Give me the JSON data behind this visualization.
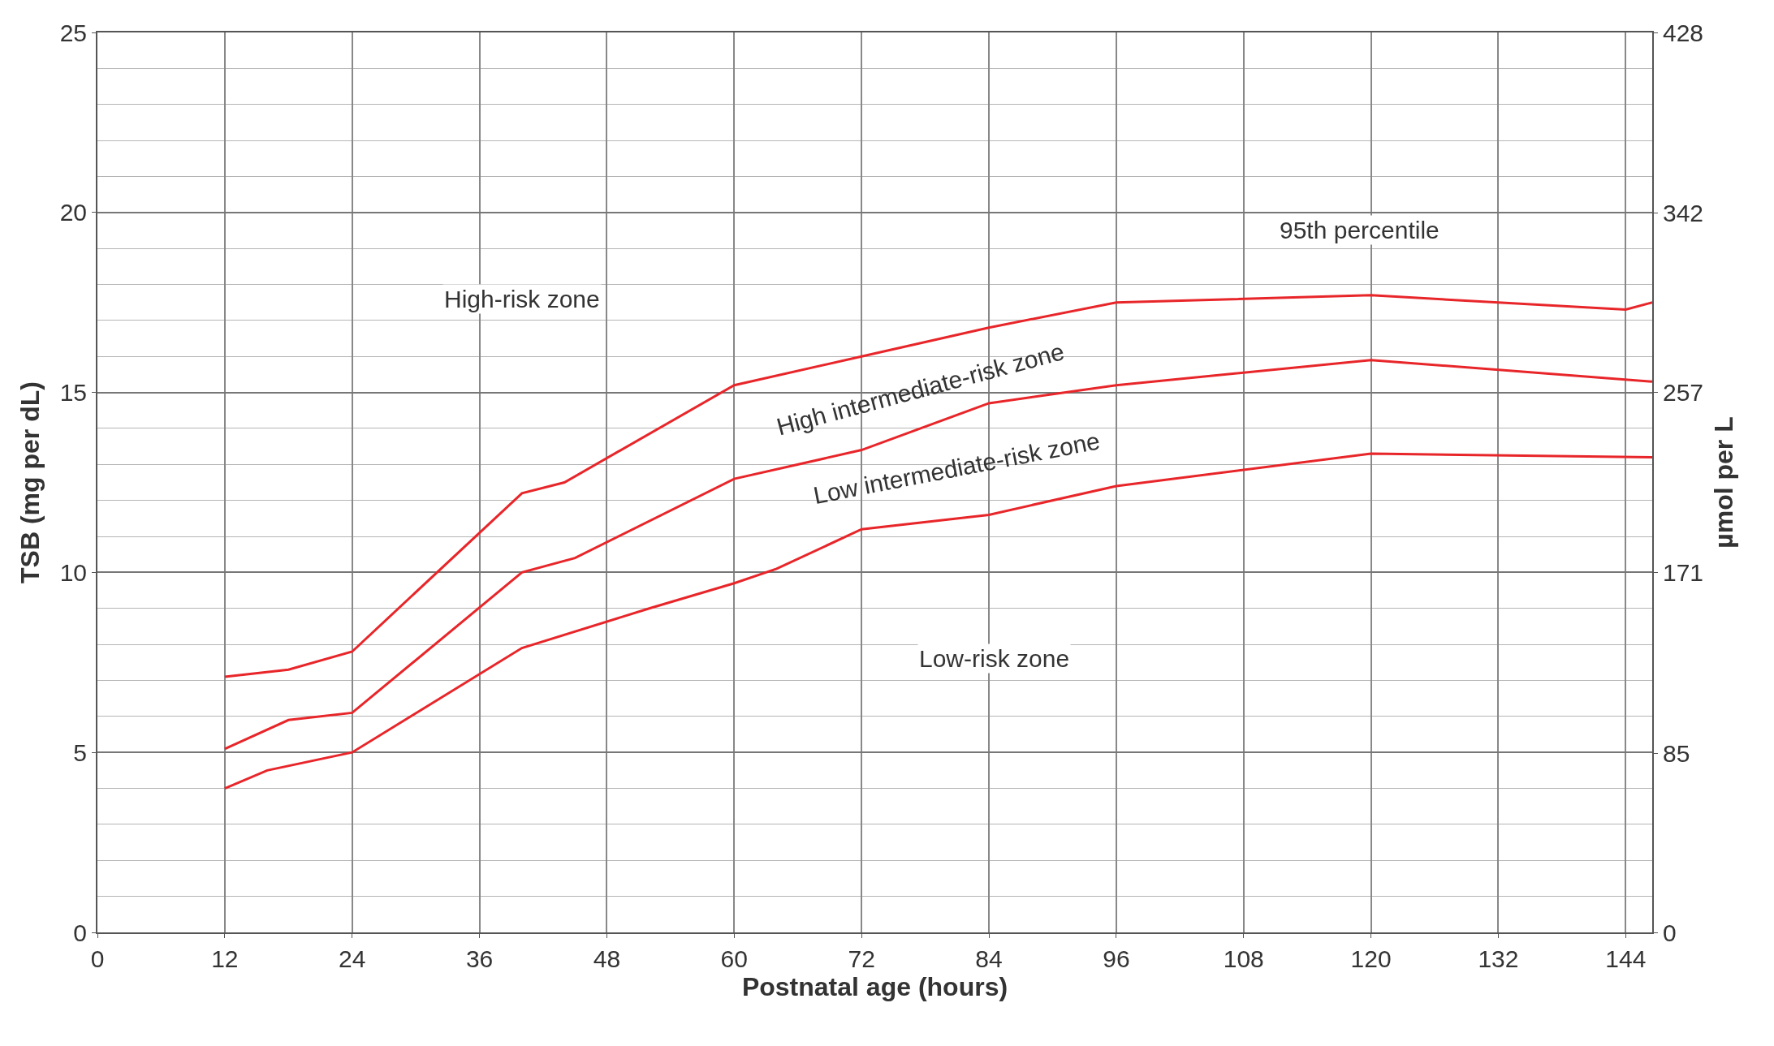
{
  "chart_data": {
    "type": "line",
    "xlabel": "Postnatal age (hours)",
    "ylabel": "TSB (mg per dL)",
    "y2label": "µmol per L",
    "xlim": [
      0,
      146.5
    ],
    "xticks": [
      0,
      12,
      24,
      36,
      48,
      60,
      72,
      84,
      96,
      108,
      120,
      132,
      144
    ],
    "ylim": [
      0,
      25
    ],
    "yticks": [
      0,
      5,
      10,
      15,
      20,
      25
    ],
    "y2lim": [
      0,
      428
    ],
    "y2ticks": [
      0,
      85,
      171,
      257,
      342,
      428
    ],
    "grid": true,
    "marker": "none",
    "line_style": "solid",
    "series": [
      {
        "color": "#e8262a",
        "x": [
          12,
          18,
          24,
          40,
          44,
          60,
          72,
          84,
          96,
          120,
          144,
          146.5
        ],
        "values": [
          7.1,
          7.3,
          7.8,
          12.2,
          12.5,
          15.2,
          16.0,
          16.8,
          17.5,
          17.7,
          17.3,
          17.5
        ]
      },
      {
        "color": "#e8262a",
        "x": [
          12,
          18,
          24,
          40,
          45,
          60,
          72,
          84,
          96,
          120,
          146.5
        ],
        "values": [
          5.1,
          5.9,
          6.1,
          10.0,
          10.4,
          12.6,
          13.4,
          14.7,
          15.2,
          15.9,
          15.3
        ]
      },
      {
        "color": "#e8262a",
        "x": [
          12,
          16,
          24,
          40,
          52,
          60,
          64,
          72,
          84,
          96,
          120,
          146.5
        ],
        "values": [
          4.0,
          4.5,
          5.0,
          7.9,
          9.0,
          9.7,
          10.1,
          11.2,
          11.6,
          12.4,
          13.3,
          13.2
        ]
      }
    ],
    "annotations": [
      "95th percentile",
      "High-risk zone",
      "High intermediate-risk zone",
      "Low intermediate-risk zone",
      "Low-risk zone"
    ]
  }
}
